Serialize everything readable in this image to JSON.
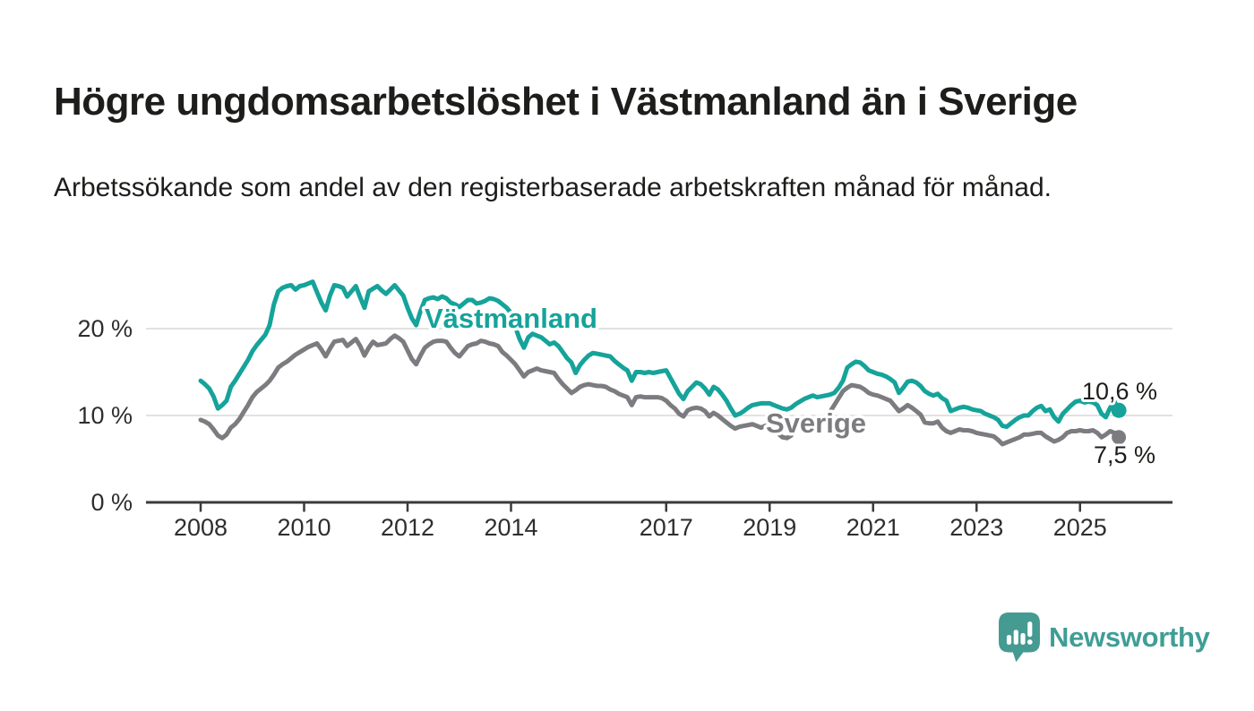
{
  "title": "Högre ungdomsarbetslöshet i Västmanland än i Sverige",
  "subtitle": "Arbetssökande som andel av den registerbaserade arbetskraften månad för månad.",
  "branding": {
    "logo_text": "Newsworthy",
    "logo_color": "#3f9e96"
  },
  "chart_data": {
    "type": "line",
    "title": "Högre ungdomsarbetslöshet i Västmanland än i Sverige",
    "subtitle": "Arbetssökande som andel av den registerbaserade arbetskraften månad för månad.",
    "unit": "%",
    "frequency": "monthly",
    "x_start": "2008-01",
    "x_end": "2025-10",
    "ylim": [
      0,
      27
    ],
    "grid": true,
    "legend_position": "inline-labels",
    "yticks": [
      {
        "value": 0,
        "label": "0 %"
      },
      {
        "value": 10,
        "label": "10 %"
      },
      {
        "value": 20,
        "label": "20 %"
      }
    ],
    "xticks": [
      {
        "year": 2008,
        "label": "2008"
      },
      {
        "year": 2010,
        "label": "2010"
      },
      {
        "year": 2012,
        "label": "2012"
      },
      {
        "year": 2014,
        "label": "2014"
      },
      {
        "year": 2017,
        "label": "2017"
      },
      {
        "year": 2019,
        "label": "2019"
      },
      {
        "year": 2021,
        "label": "2021"
      },
      {
        "year": 2023,
        "label": "2023"
      },
      {
        "year": 2025,
        "label": "2025"
      }
    ],
    "series": [
      {
        "name": "Västmanland",
        "color": "#15a39a",
        "end_label": "10,6 %",
        "end_value": 10.6,
        "values": [
          14.0,
          13.6,
          13.1,
          12.2,
          10.8,
          11.2,
          11.7,
          13.3,
          14.0,
          14.8,
          15.6,
          16.4,
          17.4,
          18.1,
          18.7,
          19.3,
          20.4,
          22.8,
          24.3,
          24.7,
          24.9,
          25.0,
          24.5,
          24.9,
          25.0,
          25.2,
          25.4,
          24.2,
          23.0,
          22.1,
          23.8,
          25.0,
          24.9,
          24.7,
          23.7,
          24.3,
          24.9,
          23.6,
          22.4,
          24.3,
          24.6,
          24.9,
          24.4,
          24.0,
          24.5,
          25.0,
          24.4,
          23.8,
          22.4,
          21.2,
          20.4,
          22.0,
          23.3,
          23.5,
          23.6,
          23.4,
          23.7,
          23.5,
          23.0,
          22.8,
          22.5,
          22.9,
          23.3,
          23.3,
          22.9,
          23.0,
          23.2,
          23.5,
          23.4,
          23.2,
          22.8,
          22.4,
          21.8,
          20.2,
          18.8,
          17.8,
          19.0,
          19.4,
          19.2,
          19.0,
          18.6,
          18.2,
          18.4,
          18.0,
          17.3,
          16.6,
          16.1,
          14.9,
          15.8,
          16.4,
          16.9,
          17.2,
          17.1,
          17.0,
          16.9,
          16.8,
          16.3,
          15.9,
          15.5,
          15.2,
          14.0,
          15.0,
          15.0,
          14.9,
          15.0,
          14.9,
          15.0,
          15.1,
          15.2,
          14.3,
          13.4,
          12.5,
          11.9,
          12.8,
          13.3,
          13.8,
          13.6,
          13.1,
          12.4,
          13.3,
          13.0,
          12.4,
          11.7,
          10.8,
          10.0,
          10.2,
          10.5,
          10.9,
          11.2,
          11.3,
          11.4,
          11.4,
          11.4,
          11.2,
          11.0,
          10.8,
          10.7,
          10.9,
          11.3,
          11.6,
          11.9,
          12.1,
          12.3,
          12.1,
          12.2,
          12.3,
          12.4,
          12.6,
          13.2,
          14.0,
          15.5,
          15.9,
          16.2,
          16.1,
          15.7,
          15.2,
          15.0,
          14.8,
          14.7,
          14.5,
          14.2,
          13.8,
          12.6,
          13.2,
          13.9,
          14.0,
          13.8,
          13.4,
          12.8,
          12.5,
          12.3,
          12.5,
          12.0,
          11.7,
          10.5,
          10.7,
          10.9,
          11.0,
          10.9,
          10.7,
          10.6,
          10.5,
          10.2,
          10.0,
          9.8,
          9.5,
          8.8,
          8.7,
          9.1,
          9.5,
          9.8,
          10.0,
          10.0,
          10.5,
          10.9,
          11.1,
          10.5,
          10.7,
          9.8,
          9.3,
          10.2,
          10.7,
          11.2,
          11.6,
          11.7,
          11.5,
          11.6,
          11.5,
          11.2,
          10.2,
          9.8,
          10.9,
          11.6,
          10.6
        ]
      },
      {
        "name": "Sverige",
        "color": "#7c7c80",
        "end_label": "7,5 %",
        "end_value": 7.5,
        "values": [
          9.5,
          9.3,
          9.0,
          8.4,
          7.7,
          7.4,
          7.8,
          8.6,
          9.0,
          9.6,
          10.4,
          11.2,
          12.1,
          12.7,
          13.1,
          13.5,
          14.0,
          14.7,
          15.5,
          15.9,
          16.2,
          16.6,
          17.0,
          17.3,
          17.6,
          17.9,
          18.1,
          18.3,
          17.6,
          16.8,
          17.7,
          18.5,
          18.6,
          18.7,
          18.0,
          18.4,
          18.8,
          18.0,
          16.9,
          17.8,
          18.5,
          18.1,
          18.2,
          18.3,
          18.8,
          19.2,
          18.9,
          18.5,
          17.5,
          16.5,
          15.9,
          16.9,
          17.8,
          18.2,
          18.5,
          18.6,
          18.6,
          18.5,
          17.8,
          17.2,
          16.8,
          17.4,
          18.0,
          18.2,
          18.3,
          18.6,
          18.5,
          18.3,
          18.2,
          18.0,
          17.3,
          16.9,
          16.4,
          15.9,
          15.2,
          14.5,
          15.0,
          15.2,
          15.4,
          15.2,
          15.1,
          15.0,
          14.9,
          14.2,
          13.6,
          13.1,
          12.6,
          12.9,
          13.3,
          13.5,
          13.6,
          13.5,
          13.4,
          13.4,
          13.3,
          13.0,
          12.8,
          12.5,
          12.3,
          12.1,
          11.2,
          12.1,
          12.2,
          12.1,
          12.1,
          12.1,
          12.1,
          12.0,
          11.7,
          11.2,
          10.8,
          10.2,
          9.9,
          10.6,
          10.8,
          10.9,
          10.8,
          10.5,
          9.9,
          10.3,
          10.0,
          9.6,
          9.2,
          8.8,
          8.5,
          8.7,
          8.8,
          8.9,
          9.0,
          8.8,
          8.6,
          8.8,
          8.6,
          8.3,
          7.9,
          7.5,
          7.4,
          7.7,
          8.4,
          8.9,
          9.2,
          9.4,
          9.5,
          9.5,
          9.6,
          9.8,
          10.4,
          11.2,
          12.0,
          12.8,
          13.2,
          13.5,
          13.4,
          13.3,
          13.0,
          12.6,
          12.4,
          12.3,
          12.1,
          11.9,
          11.7,
          11.1,
          10.5,
          10.8,
          11.2,
          10.9,
          10.5,
          10.1,
          9.2,
          9.1,
          9.1,
          9.3,
          8.6,
          8.2,
          8.0,
          8.2,
          8.4,
          8.3,
          8.3,
          8.2,
          8.0,
          7.9,
          7.8,
          7.7,
          7.6,
          7.2,
          6.7,
          6.9,
          7.1,
          7.3,
          7.5,
          7.8,
          7.8,
          7.9,
          8.0,
          8.0,
          7.6,
          7.3,
          7.0,
          7.2,
          7.5,
          8.0,
          8.2,
          8.2,
          8.3,
          8.2,
          8.2,
          8.3,
          8.0,
          7.5,
          7.8,
          8.2,
          8.0,
          7.5
        ]
      }
    ]
  }
}
